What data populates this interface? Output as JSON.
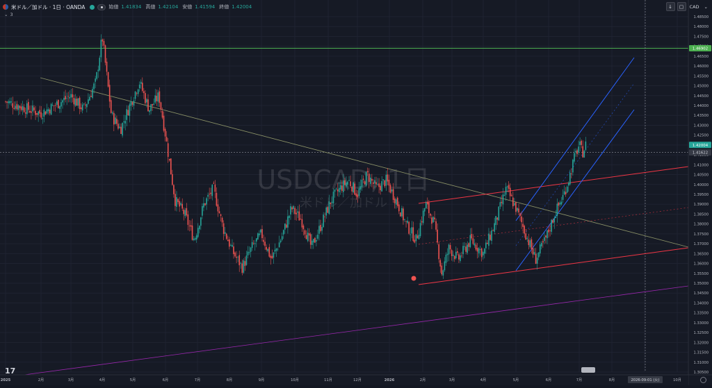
{
  "header": {
    "symbol_title": "米ドル／加ドル · 1日 · OANDA",
    "ohlc": [
      {
        "label": "始値",
        "value": "1.41834"
      },
      {
        "label": "高値",
        "value": "1.42104"
      },
      {
        "label": "安値",
        "value": "1.41594"
      },
      {
        "label": "終値",
        "value": "1.42004"
      }
    ],
    "indicator_count": "3",
    "currency": "CAD"
  },
  "watermark": {
    "symbol": "USDCAD, 1日",
    "name": "米ドル／加ドル"
  },
  "price_labels": {
    "horizontal_line": "1.46902",
    "current_price": "1.42004",
    "crosshair": "1.41622"
  },
  "date_label": "2026-09-01 (火)",
  "colors": {
    "up": "#26a69a",
    "down": "#ef5350",
    "horizontal_line": "#4caf50",
    "channel_red": "#f23645",
    "channel_blue": "#2962ff",
    "purple_trend": "#9c27b0",
    "gray_trend": "#8d9468"
  },
  "chart_data": {
    "type": "candlestick",
    "title": "USDCAD, 1日",
    "y_ticks": [
      "1.48500",
      "1.48000",
      "1.47500",
      "1.47000",
      "1.46500",
      "1.46000",
      "1.45500",
      "1.45000",
      "1.44500",
      "1.44000",
      "1.43500",
      "1.43000",
      "1.42500",
      "1.42000",
      "1.41500",
      "1.41000",
      "1.40500",
      "1.40000",
      "1.39500",
      "1.39000",
      "1.38500",
      "1.38000",
      "1.37500",
      "1.37000",
      "1.36500",
      "1.36000",
      "1.35500",
      "1.35000",
      "1.34500",
      "1.34000",
      "1.33500",
      "1.33000",
      "1.32500",
      "1.32000",
      "1.31500",
      "1.31000",
      "1.30500"
    ],
    "x_ticks": [
      "2025",
      "2月",
      "3月",
      "4月",
      "5月",
      "6月",
      "7月",
      "8月",
      "9月",
      "10月",
      "11月",
      "12月",
      "2026",
      "2月",
      "3月",
      "4月",
      "5月",
      "6月",
      "7月",
      "8月",
      "9月",
      "10月",
      "11月"
    ],
    "ylim": [
      1.3035,
      1.4875
    ],
    "close_path": [
      [
        0,
        1.442
      ],
      [
        1,
        1.436
      ],
      [
        2,
        1.445
      ],
      [
        2.4,
        1.438
      ],
      [
        2.8,
        1.452
      ],
      [
        3.0,
        1.475
      ],
      [
        3.3,
        1.435
      ],
      [
        3.6,
        1.428
      ],
      [
        3.9,
        1.44
      ],
      [
        4.2,
        1.452
      ],
      [
        4.5,
        1.438
      ],
      [
        4.8,
        1.445
      ],
      [
        5.0,
        1.425
      ],
      [
        5.3,
        1.392
      ],
      [
        5.6,
        1.385
      ],
      [
        5.9,
        1.372
      ],
      [
        6.2,
        1.39
      ],
      [
        6.5,
        1.398
      ],
      [
        6.8,
        1.378
      ],
      [
        7.1,
        1.366
      ],
      [
        7.4,
        1.358
      ],
      [
        7.7,
        1.368
      ],
      [
        8.0,
        1.375
      ],
      [
        8.3,
        1.362
      ],
      [
        8.6,
        1.373
      ],
      [
        8.9,
        1.388
      ],
      [
        9.2,
        1.382
      ],
      [
        9.5,
        1.368
      ],
      [
        9.8,
        1.38
      ],
      [
        10.1,
        1.392
      ],
      [
        10.4,
        1.398
      ],
      [
        10.7,
        1.402
      ],
      [
        11.0,
        1.395
      ],
      [
        11.3,
        1.405
      ],
      [
        11.6,
        1.398
      ],
      [
        11.9,
        1.402
      ],
      [
        12.2,
        1.392
      ],
      [
        12.5,
        1.38
      ],
      [
        12.8,
        1.372
      ],
      [
        13.1,
        1.39
      ],
      [
        13.4,
        1.38
      ],
      [
        13.65,
        1.355
      ],
      [
        13.9,
        1.368
      ],
      [
        14.2,
        1.362
      ],
      [
        14.6,
        1.372
      ],
      [
        15.0,
        1.365
      ],
      [
        15.4,
        1.382
      ],
      [
        15.7,
        1.398
      ],
      [
        16.0,
        1.388
      ],
      [
        16.3,
        1.375
      ],
      [
        16.6,
        1.362
      ],
      [
        16.9,
        1.372
      ],
      [
        17.2,
        1.385
      ],
      [
        17.5,
        1.395
      ],
      [
        17.7,
        1.405
      ],
      [
        17.85,
        1.414
      ],
      [
        18.0,
        1.42
      ],
      [
        18.1,
        1.416
      ],
      [
        18.2,
        1.42
      ]
    ],
    "annotations": [
      "1.46902",
      "1.42004",
      "1.41622",
      "2026-09-01 (火)"
    ]
  }
}
